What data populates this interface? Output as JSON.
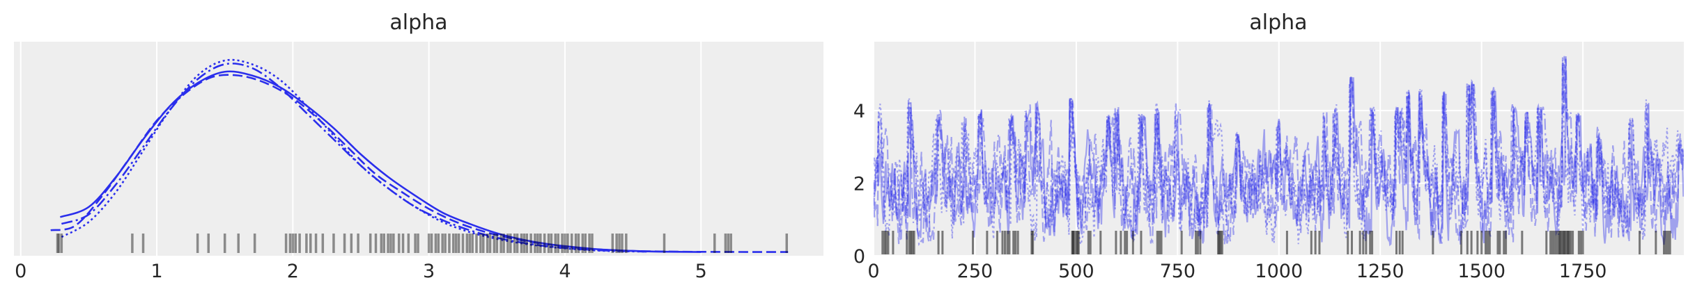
{
  "chart_data": [
    {
      "type": "line",
      "title": "alpha",
      "xlabel": "",
      "ylabel": "",
      "xlim": [
        -0.05,
        5.9
      ],
      "ylim": [
        -0.01,
        0.56
      ],
      "grid": true,
      "xticks": [
        0,
        1,
        2,
        3,
        4,
        5
      ],
      "yticks": [],
      "color": "#2a2eec",
      "series": [
        {
          "style": "solid",
          "x": [
            0.29,
            0.5,
            0.7,
            0.9,
            1.1,
            1.3,
            1.5,
            1.7,
            1.9,
            2.1,
            2.3,
            2.5,
            2.7,
            2.9,
            3.1,
            3.3,
            3.5,
            3.7,
            3.9,
            4.1,
            4.3,
            4.5,
            4.7,
            5.0
          ],
          "y": [
            0.093,
            0.12,
            0.2,
            0.3,
            0.39,
            0.45,
            0.48,
            0.47,
            0.44,
            0.39,
            0.33,
            0.26,
            0.2,
            0.15,
            0.105,
            0.075,
            0.05,
            0.032,
            0.02,
            0.012,
            0.006,
            0.003,
            0.001,
            0.0
          ]
        },
        {
          "style": "dashed",
          "x": [
            0.22,
            0.4,
            0.6,
            0.8,
            1.0,
            1.2,
            1.4,
            1.6,
            1.8,
            2.0,
            2.2,
            2.4,
            2.6,
            2.8,
            3.0,
            3.2,
            3.4,
            3.6,
            3.8,
            4.0,
            4.2,
            4.4,
            4.6,
            5.0,
            5.64
          ],
          "y": [
            0.058,
            0.07,
            0.15,
            0.25,
            0.35,
            0.42,
            0.465,
            0.47,
            0.45,
            0.41,
            0.35,
            0.28,
            0.21,
            0.16,
            0.115,
            0.08,
            0.055,
            0.037,
            0.024,
            0.015,
            0.008,
            0.004,
            0.002,
            0.0005,
            0.0
          ]
        },
        {
          "style": "dashdot",
          "x": [
            0.3,
            0.5,
            0.7,
            0.9,
            1.1,
            1.3,
            1.5,
            1.7,
            1.9,
            2.1,
            2.3,
            2.5,
            2.7,
            2.9,
            3.1,
            3.3,
            3.5,
            3.7,
            3.9,
            4.1,
            4.3,
            4.6
          ],
          "y": [
            0.075,
            0.1,
            0.18,
            0.28,
            0.38,
            0.46,
            0.5,
            0.49,
            0.44,
            0.37,
            0.3,
            0.23,
            0.17,
            0.12,
            0.085,
            0.058,
            0.038,
            0.024,
            0.014,
            0.008,
            0.004,
            0.001
          ]
        },
        {
          "style": "dotted",
          "x": [
            0.3,
            0.5,
            0.7,
            0.9,
            1.1,
            1.3,
            1.5,
            1.7,
            1.9,
            2.1,
            2.3,
            2.5,
            2.7,
            2.9,
            3.1,
            3.3,
            3.5,
            3.7,
            3.9,
            4.1,
            4.3,
            4.6
          ],
          "y": [
            0.04,
            0.08,
            0.16,
            0.27,
            0.38,
            0.47,
            0.51,
            0.5,
            0.46,
            0.39,
            0.31,
            0.23,
            0.17,
            0.12,
            0.08,
            0.053,
            0.035,
            0.022,
            0.013,
            0.007,
            0.003,
            0.001
          ]
        }
      ],
      "rug": [
        0.27,
        0.28,
        0.3,
        0.82,
        0.9,
        1.3,
        1.38,
        1.5,
        1.6,
        1.72,
        1.95,
        1.98,
        2.0,
        2.02,
        2.05,
        2.1,
        2.13,
        2.17,
        2.22,
        2.3,
        2.38,
        2.43,
        2.48,
        2.57,
        2.61,
        2.65,
        2.67,
        2.7,
        2.72,
        2.74,
        2.78,
        2.81,
        2.85,
        2.9,
        2.92,
        3.0,
        3.02,
        3.05,
        3.07,
        3.1,
        3.12,
        3.15,
        3.18,
        3.2,
        3.22,
        3.25,
        3.28,
        3.3,
        3.32,
        3.35,
        3.38,
        3.4,
        3.43,
        3.45,
        3.48,
        3.5,
        3.53,
        3.55,
        3.58,
        3.6,
        3.63,
        3.65,
        3.68,
        3.7,
        3.72,
        3.75,
        3.78,
        3.8,
        3.82,
        3.85,
        3.88,
        3.9,
        3.93,
        3.95,
        3.98,
        4.0,
        4.02,
        4.05,
        4.08,
        4.1,
        4.13,
        4.15,
        4.18,
        4.2,
        4.35,
        4.38,
        4.4,
        4.42,
        4.45,
        4.73,
        5.1,
        5.18,
        5.2,
        5.22,
        5.63
      ]
    },
    {
      "type": "line",
      "title": "alpha",
      "xlabel": "",
      "ylabel": "",
      "xlim": [
        0,
        1999
      ],
      "ylim": [
        0,
        5.9
      ],
      "grid": true,
      "xticks": [
        0,
        250,
        500,
        750,
        1000,
        1250,
        1500,
        1750
      ],
      "yticks": [
        0,
        2,
        4
      ],
      "color": "#2a2eec",
      "chains": 4,
      "draws_per_chain": 2000,
      "trace_peaks": [
        {
          "x": 17,
          "y": 4.0
        },
        {
          "x": 89,
          "y": 4.35
        },
        {
          "x": 161,
          "y": 3.9
        },
        {
          "x": 225,
          "y": 3.8
        },
        {
          "x": 263,
          "y": 4.05
        },
        {
          "x": 340,
          "y": 3.95
        },
        {
          "x": 380,
          "y": 4.0
        },
        {
          "x": 404,
          "y": 4.25
        },
        {
          "x": 488,
          "y": 4.4
        },
        {
          "x": 580,
          "y": 3.9
        },
        {
          "x": 600,
          "y": 4.1
        },
        {
          "x": 660,
          "y": 3.95
        },
        {
          "x": 700,
          "y": 4.1
        },
        {
          "x": 749,
          "y": 4.0
        },
        {
          "x": 830,
          "y": 4.3
        },
        {
          "x": 900,
          "y": 3.4
        },
        {
          "x": 1000,
          "y": 3.75
        },
        {
          "x": 1115,
          "y": 4.0
        },
        {
          "x": 1140,
          "y": 4.1
        },
        {
          "x": 1180,
          "y": 5.0
        },
        {
          "x": 1230,
          "y": 4.1
        },
        {
          "x": 1290,
          "y": 4.1
        },
        {
          "x": 1300,
          "y": 4.0
        },
        {
          "x": 1320,
          "y": 4.6
        },
        {
          "x": 1350,
          "y": 4.6
        },
        {
          "x": 1410,
          "y": 4.55
        },
        {
          "x": 1470,
          "y": 4.8
        },
        {
          "x": 1480,
          "y": 4.9
        },
        {
          "x": 1530,
          "y": 4.65
        },
        {
          "x": 1580,
          "y": 4.2
        },
        {
          "x": 1610,
          "y": 4.0
        },
        {
          "x": 1644,
          "y": 4.1
        },
        {
          "x": 1705,
          "y": 5.55
        },
        {
          "x": 1740,
          "y": 4.0
        },
        {
          "x": 1790,
          "y": 3.5
        },
        {
          "x": 1870,
          "y": 3.8
        },
        {
          "x": 1910,
          "y": 4.35
        },
        {
          "x": 1990,
          "y": 3.1
        }
      ],
      "rug": [
        22,
        27,
        31,
        36,
        48,
        82,
        88,
        92,
        96,
        100,
        160,
        170,
        245,
        280,
        305,
        318,
        324,
        330,
        335,
        345,
        350,
        356,
        390,
        393,
        490,
        492,
        495,
        500,
        503,
        506,
        530,
        535,
        560,
        598,
        610,
        620,
        625,
        640,
        660,
        700,
        705,
        710,
        760,
        795,
        800,
        806,
        850,
        853,
        856,
        860,
        1020,
        1080,
        1090,
        1100,
        1170,
        1180,
        1200,
        1208,
        1215,
        1225,
        1230,
        1290,
        1298,
        1305,
        1380,
        1450,
        1465,
        1475,
        1490,
        1500,
        1510,
        1515,
        1520,
        1540,
        1545,
        1555,
        1560,
        1600,
        1660,
        1670,
        1675,
        1680,
        1685,
        1690,
        1693,
        1696,
        1700,
        1703,
        1706,
        1710,
        1713,
        1716,
        1720,
        1725,
        1740,
        1745,
        1750,
        1890,
        1930,
        1950,
        1955,
        1960,
        1965
      ]
    }
  ]
}
